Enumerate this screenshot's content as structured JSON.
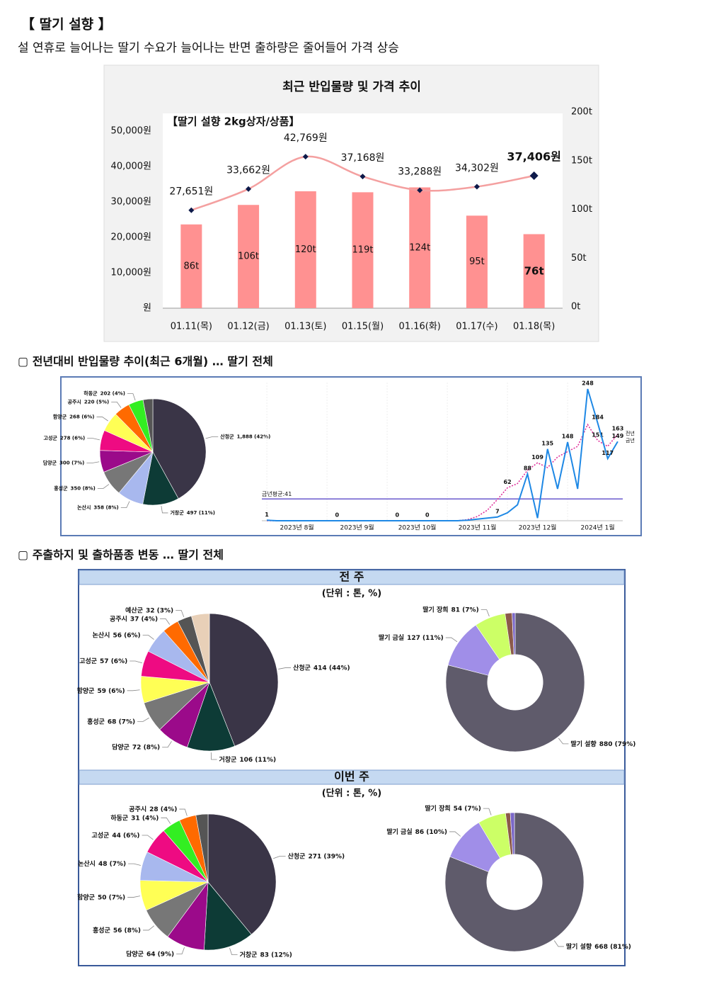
{
  "title": "【 딸기 설향 】",
  "subtitle": "설 연휴로 늘어나는 딸기 수요가 늘어나는 반면 출하량은 줄어들어 가격 상승",
  "section2": "▢  전년대비 반입물량 추이(최근 6개월) … 딸기 전체",
  "section3": "▢  주출하지 및 출하품종 변동 … 딸기 전체",
  "panels": [
    {
      "title": "전 주",
      "unit": "(단위 : 톤, %)"
    },
    {
      "title": "이번 주",
      "unit": "(단위 : 톤, %)"
    }
  ],
  "chart_data": [
    {
      "type": "combo",
      "title": "최근 반입물량 및 가격 추이",
      "label": "【딸기 설향 2kg상자/상품】",
      "categories": [
        "01.11(목)",
        "01.12(금)",
        "01.13(토)",
        "01.15(월)",
        "01.16(화)",
        "01.17(수)",
        "01.18(목)"
      ],
      "series": [
        {
          "kind": "bar",
          "axis": "y2",
          "color": "#ff9191",
          "values": [
            86,
            106,
            120,
            119,
            124,
            95,
            76
          ],
          "value_labels": [
            "86t",
            "106t",
            "120t",
            "119t",
            "124t",
            "95t",
            "76t"
          ]
        },
        {
          "kind": "line",
          "color": "#f4a0a0",
          "marker_color": "#0d1a4a",
          "values": [
            27651,
            33662,
            42769,
            37168,
            33288,
            34302,
            37406
          ],
          "value_labels": [
            "27,651원",
            "33,662원",
            "42,769원",
            "37,168원",
            "33,288원",
            "34,302원",
            "37,406원"
          ]
        }
      ],
      "ylim": [
        0,
        55000
      ],
      "yticks": [
        {
          "value": 0,
          "label": "원"
        },
        {
          "value": 10000,
          "label": "10,000원"
        },
        {
          "value": 20000,
          "label": "20,000원"
        },
        {
          "value": 30000,
          "label": "30,000원"
        },
        {
          "value": 40000,
          "label": "40,000원"
        },
        {
          "value": 50000,
          "label": "50,000원"
        }
      ],
      "y2lim": [
        0,
        200
      ],
      "y2ticks": [
        {
          "value": 0,
          "label": "0t"
        },
        {
          "value": 50,
          "label": "50t"
        },
        {
          "value": 100,
          "label": "100t"
        },
        {
          "value": 150,
          "label": "150t"
        },
        {
          "value": 200,
          "label": "200t"
        }
      ]
    },
    {
      "type": "pie",
      "categories": [
        "산청군",
        "거창군",
        "논산시",
        "홍성군",
        "담양군",
        "고성군",
        "함양군",
        "공주시",
        "하동군",
        null
      ],
      "values": [
        1888,
        497,
        358,
        350,
        300,
        278,
        268,
        220,
        202,
        134
      ],
      "value_labels": [
        "1,888 (42%)",
        "497 (11%)",
        "358 (8%)",
        "350 (8%)",
        "300 (7%)",
        "278 (6%)",
        "268 (6%)",
        "220 (5%)",
        "202 (4%)",
        null
      ],
      "colors": [
        "#3a3547",
        "#0d3b36",
        "#a8b8ee",
        "#777777",
        "#9b0a8a",
        "#ee0b82",
        "#ffff55",
        "#ff6a00",
        "#33ee22",
        "#555555"
      ]
    },
    {
      "type": "line",
      "categories": [
        null,
        null,
        null,
        "2023년 8월",
        null,
        null,
        null,
        null,
        null,
        "2023년 9월",
        null,
        null,
        null,
        null,
        null,
        "2023년 10월",
        null,
        null,
        null,
        null,
        null,
        "2023년 11월",
        null,
        null,
        null,
        null,
        null,
        "2023년 12월",
        null,
        null,
        null,
        null,
        null,
        "2024년 1월",
        null,
        null
      ],
      "series": [
        {
          "name": "전년",
          "color": "#e0309a",
          "dash": true,
          "values": [
            0,
            0,
            0,
            0,
            0,
            0,
            0,
            0,
            0,
            0,
            0,
            0,
            0,
            0,
            0,
            0,
            0,
            0,
            0,
            0,
            2,
            8,
            20,
            40,
            62,
            70,
            95,
            109,
            100,
            120,
            130,
            140,
            181,
            151,
            140,
            163
          ],
          "value_labels": [
            null,
            null,
            null,
            null,
            null,
            null,
            null,
            "0",
            null,
            null,
            null,
            null,
            null,
            null,
            null,
            null,
            "0",
            null,
            null,
            null,
            null,
            null,
            null,
            null,
            "62",
            null,
            null,
            "109",
            null,
            null,
            null,
            null,
            null,
            "151",
            null,
            "163"
          ]
        },
        {
          "name": "금년",
          "color": "#1e88e5",
          "dash": false,
          "values": [
            1,
            0,
            0,
            0,
            0,
            0,
            0,
            0,
            0,
            0,
            0,
            0,
            0,
            0,
            0,
            0,
            0,
            0,
            0,
            0,
            1,
            3,
            5,
            7,
            15,
            30,
            88,
            5,
            135,
            60,
            148,
            60,
            248,
            184,
            117,
            149
          ],
          "value_labels": [
            "1",
            null,
            null,
            null,
            null,
            null,
            null,
            null,
            null,
            null,
            null,
            null,
            null,
            "0",
            null,
            null,
            null,
            null,
            null,
            null,
            null,
            null,
            null,
            "7",
            null,
            null,
            "88",
            null,
            "135",
            null,
            "148",
            null,
            "248",
            "184",
            "117",
            "149"
          ]
        }
      ],
      "average": {
        "value": 41,
        "label": "금년평균:41",
        "color": "#6a5acd"
      },
      "ylim": [
        0,
        260
      ]
    },
    {
      "type": "pie",
      "categories": [
        "산청군",
        "거창군",
        "담양군",
        "홍성군",
        "함양군",
        "고성군",
        "논산시",
        "공주시",
        "예산군",
        null
      ],
      "values": [
        414,
        106,
        72,
        68,
        59,
        57,
        56,
        37,
        32,
        40
      ],
      "value_labels": [
        "414 (44%)",
        "106 (11%)",
        "72 (8%)",
        "68 (7%)",
        "59 (6%)",
        "57 (6%)",
        "56 (6%)",
        "37 (4%)",
        "32 (3%)",
        null
      ],
      "colors": [
        "#3a3547",
        "#0d3b36",
        "#9b0a8a",
        "#777777",
        "#ffff55",
        "#ee0b82",
        "#a8b8ee",
        "#ff6a00",
        "#555555",
        "#e8d0b8"
      ]
    },
    {
      "type": "donut",
      "categories": [
        "딸기 설향",
        "딸기 금실",
        "딸기 장희",
        null,
        null
      ],
      "values": [
        880,
        127,
        81,
        18,
        8
      ],
      "value_labels": [
        "880 (79%)",
        "127 (11%)",
        "81 (7%)",
        null,
        null
      ],
      "colors": [
        "#5f5b6b",
        "#a08ee8",
        "#ccff66",
        "#8b5a4a",
        "#7b68c8"
      ]
    },
    {
      "type": "pie",
      "categories": [
        "산청군",
        "거창군",
        "담양군",
        "홍성군",
        "함양군",
        "논산시",
        "고성군",
        "하동군",
        "공주시",
        null
      ],
      "values": [
        271,
        83,
        64,
        56,
        50,
        48,
        44,
        31,
        28,
        20
      ],
      "value_labels": [
        "271 (39%)",
        "83 (12%)",
        "64 (9%)",
        "56 (8%)",
        "50 (7%)",
        "48 (7%)",
        "44 (6%)",
        "31 (4%)",
        "28 (4%)",
        null
      ],
      "colors": [
        "#3a3547",
        "#0d3b36",
        "#9b0a8a",
        "#777777",
        "#ffff55",
        "#a8b8ee",
        "#ee0b82",
        "#33ee22",
        "#ff6a00",
        "#555555"
      ]
    },
    {
      "type": "donut",
      "categories": [
        "딸기 설향",
        "딸기 금실",
        "딸기 장희",
        null,
        null
      ],
      "values": [
        668,
        86,
        54,
        9,
        8
      ],
      "value_labels": [
        "668 (81%)",
        "86 (10%)",
        "54 (7%)",
        null,
        null
      ],
      "colors": [
        "#5f5b6b",
        "#a08ee8",
        "#ccff66",
        "#8b5a4a",
        "#7b68c8"
      ]
    }
  ]
}
